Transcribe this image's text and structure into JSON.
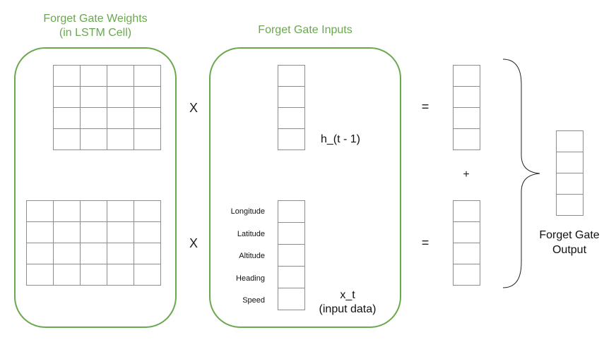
{
  "weights_panel": {
    "title_line1": "Forget Gate Weights",
    "title_line2": "(in LSTM Cell)",
    "matrix_top": {
      "rows": 4,
      "cols": 4
    },
    "matrix_bottom": {
      "rows": 4,
      "cols": 5
    }
  },
  "inputs_panel": {
    "title": "Forget Gate Inputs",
    "hidden_state_label": "h_(t - 1)",
    "input_label_line1": "x_t",
    "input_label_line2": "(input data)",
    "features": [
      "Longitude",
      "Latitude",
      "Altitude",
      "Heading",
      "Speed"
    ]
  },
  "operators": {
    "multiply_top": "X",
    "multiply_bottom": "X",
    "equals_top": "=",
    "equals_bottom": "=",
    "plus": "+"
  },
  "output": {
    "label_line1": "Forget Gate",
    "label_line2": "Output"
  },
  "colors": {
    "accent": "#6aa84f",
    "grid_line": "#8c8c8c"
  }
}
